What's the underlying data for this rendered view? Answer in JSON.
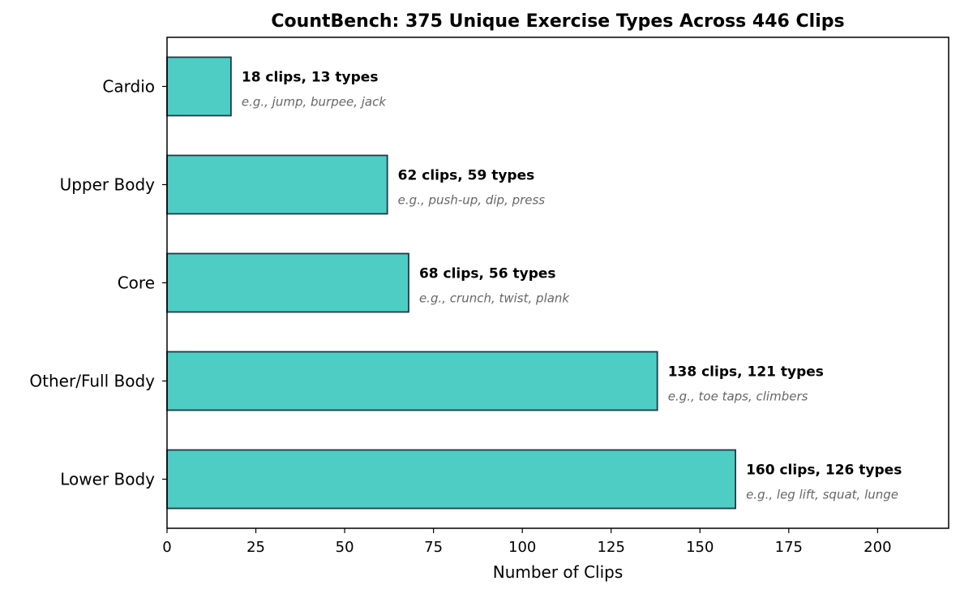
{
  "chart_data": {
    "type": "bar",
    "orientation": "horizontal",
    "title": "CountBench: 375 Unique Exercise Types Across 446 Clips",
    "xlabel": "Number of Clips",
    "ylabel": "",
    "xlim": [
      0,
      220
    ],
    "xticks": [
      0,
      25,
      50,
      75,
      100,
      125,
      150,
      175,
      200
    ],
    "xtick_labels": [
      "0",
      "25",
      "50",
      "75",
      "100",
      "125",
      "150",
      "175",
      "200"
    ],
    "grid": false,
    "categories": [
      "Cardio",
      "Upper Body",
      "Core",
      "Other/Full Body",
      "Lower Body"
    ],
    "values": [
      18,
      62,
      68,
      138,
      160
    ],
    "types": [
      13,
      59,
      56,
      121,
      126
    ],
    "bar_labels": [
      "18 clips, 13 types",
      "62 clips, 59 types",
      "68 clips, 56 types",
      "138 clips, 121 types",
      "160 clips, 126 types"
    ],
    "example_labels": [
      "e.g., jump, burpee, jack",
      "e.g., push-up, dip, press",
      "e.g., crunch, twist, plank",
      "e.g., toe taps, climbers",
      "e.g., leg lift, squat, lunge"
    ],
    "colors": {
      "bar_fill": "#4ecdc4",
      "bar_edge": "#1f3a48",
      "example_text": "#666666"
    }
  }
}
